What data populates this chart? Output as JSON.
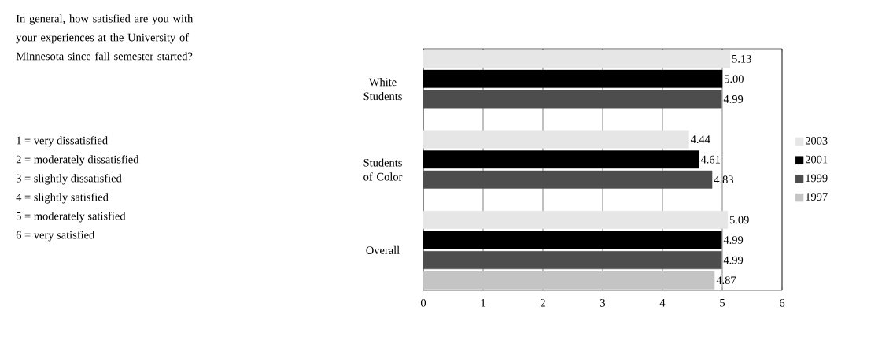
{
  "chart_data": {
    "type": "bar",
    "orientation": "horizontal",
    "categories": [
      "White Students",
      "Students of Color",
      "Overall"
    ],
    "series": [
      {
        "name": "2003",
        "color": "#e6e6e6",
        "values": [
          5.13,
          4.44,
          5.09
        ],
        "value_labels": [
          "5.13",
          "4.44",
          "5.09"
        ]
      },
      {
        "name": "2001",
        "color": "#000000",
        "values": [
          5.0,
          4.61,
          4.99
        ],
        "value_labels": [
          "5.00",
          "4.61",
          "4.99"
        ]
      },
      {
        "name": "1999",
        "color": "#4d4d4d",
        "values": [
          4.99,
          4.83,
          4.99
        ],
        "value_labels": [
          "4.99",
          "4.83",
          "4.99"
        ]
      },
      {
        "name": "1997",
        "color": "#c4c4c4",
        "values": [
          null,
          null,
          4.87
        ],
        "value_labels": [
          null,
          null,
          "4.87"
        ]
      }
    ],
    "xlim": [
      0,
      6
    ],
    "xticks": [
      0,
      1,
      2,
      3,
      4,
      5,
      6
    ],
    "grid": "x",
    "legend": "right",
    "annotations": [
      "In general, how satisfied are you with your experiences at the University of Minnesota since fall semester started?",
      "1 = very dissatisfied",
      "2 = moderately dissatisfied",
      "3 = slightly dissatisfied",
      "4 = slightly satisfied",
      "5 = moderately satisfied",
      "6 = very satisfied"
    ]
  }
}
